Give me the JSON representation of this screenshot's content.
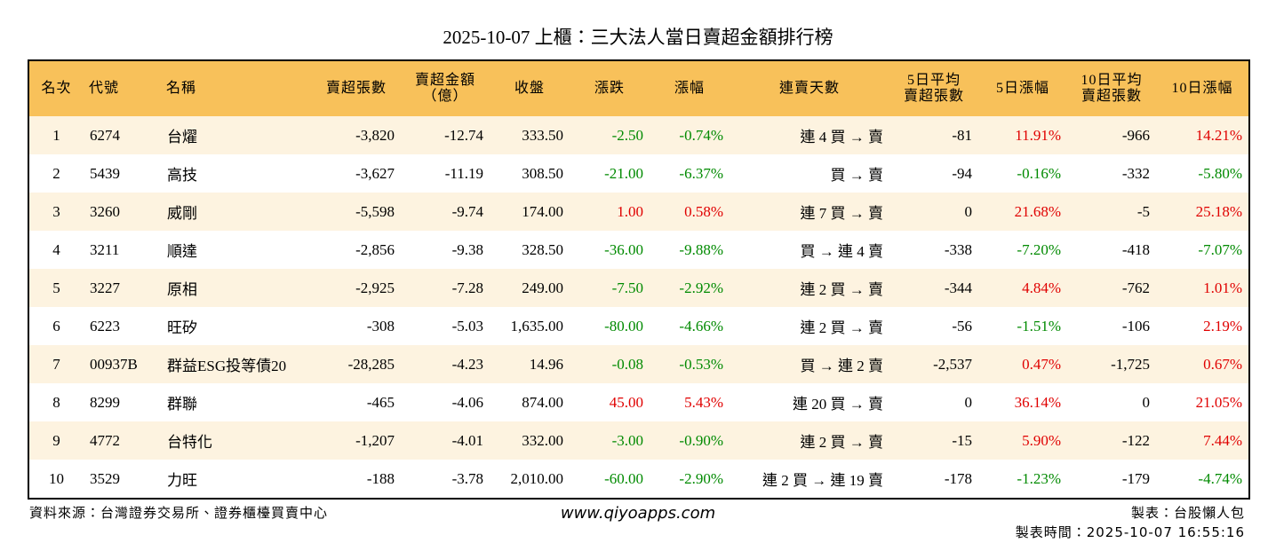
{
  "header": {
    "title": "2025-10-07 上櫃：三大法人當日賣超金額排行榜"
  },
  "table": {
    "headers": [
      [
        "名次"
      ],
      [
        "代號"
      ],
      [
        "名稱"
      ],
      [
        "賣超張數"
      ],
      [
        "賣超金額",
        "（億）"
      ],
      [
        "收盤"
      ],
      [
        "漲跌"
      ],
      [
        "漲幅"
      ],
      [
        "連賣天數"
      ],
      [
        "5日平均",
        "賣超張數"
      ],
      [
        "5日漲幅"
      ],
      [
        "10日平均",
        "賣超張數"
      ],
      [
        "10日漲幅"
      ]
    ],
    "rows": [
      [
        "1",
        "6274",
        "台燿",
        "-3,820",
        "-12.74",
        "333.50",
        "-2.50",
        "-0.74%",
        "連 4 買 → 賣",
        "-81",
        "11.91%",
        "-966",
        "14.21%"
      ],
      [
        "2",
        "5439",
        "高技",
        "-3,627",
        "-11.19",
        "308.50",
        "-21.00",
        "-6.37%",
        "買 → 賣",
        "-94",
        "-0.16%",
        "-332",
        "-5.80%"
      ],
      [
        "3",
        "3260",
        "威剛",
        "-5,598",
        "-9.74",
        "174.00",
        "1.00",
        "0.58%",
        "連 7 買 → 賣",
        "0",
        "21.68%",
        "-5",
        "25.18%"
      ],
      [
        "4",
        "3211",
        "順達",
        "-2,856",
        "-9.38",
        "328.50",
        "-36.00",
        "-9.88%",
        "買 → 連 4 賣",
        "-338",
        "-7.20%",
        "-418",
        "-7.07%"
      ],
      [
        "5",
        "3227",
        "原相",
        "-2,925",
        "-7.28",
        "249.00",
        "-7.50",
        "-2.92%",
        "連 2 買 → 賣",
        "-344",
        "4.84%",
        "-762",
        "1.01%"
      ],
      [
        "6",
        "6223",
        "旺矽",
        "-308",
        "-5.03",
        "1,635.00",
        "-80.00",
        "-4.66%",
        "連 2 買 → 賣",
        "-56",
        "-1.51%",
        "-106",
        "2.19%"
      ],
      [
        "7",
        "00937B",
        "群益ESG投等債20",
        "-28,285",
        "-4.23",
        "14.96",
        "-0.08",
        "-0.53%",
        "買 → 連 2 賣",
        "-2,537",
        "0.47%",
        "-1,725",
        "0.67%"
      ],
      [
        "8",
        "8299",
        "群聯",
        "-465",
        "-4.06",
        "874.00",
        "45.00",
        "5.43%",
        "連 20 買 → 賣",
        "0",
        "36.14%",
        "0",
        "21.05%"
      ],
      [
        "9",
        "4772",
        "台特化",
        "-1,207",
        "-4.01",
        "332.00",
        "-3.00",
        "-0.90%",
        "連 2 買 → 賣",
        "-15",
        "5.90%",
        "-122",
        "7.44%"
      ],
      [
        "10",
        "3529",
        "力旺",
        "-188",
        "-3.78",
        "2,010.00",
        "-60.00",
        "-2.90%",
        "連 2 買 → 連 19 賣",
        "-178",
        "-1.23%",
        "-179",
        "-4.74%"
      ]
    ]
  },
  "footer": {
    "source": "資料來源：台灣證券交易所、證券櫃檯買賣中心",
    "website": "www.qiyoapps.com",
    "author": "製表：台股懶人包",
    "time": "製表時間：2025-10-07 16:55:16"
  }
}
